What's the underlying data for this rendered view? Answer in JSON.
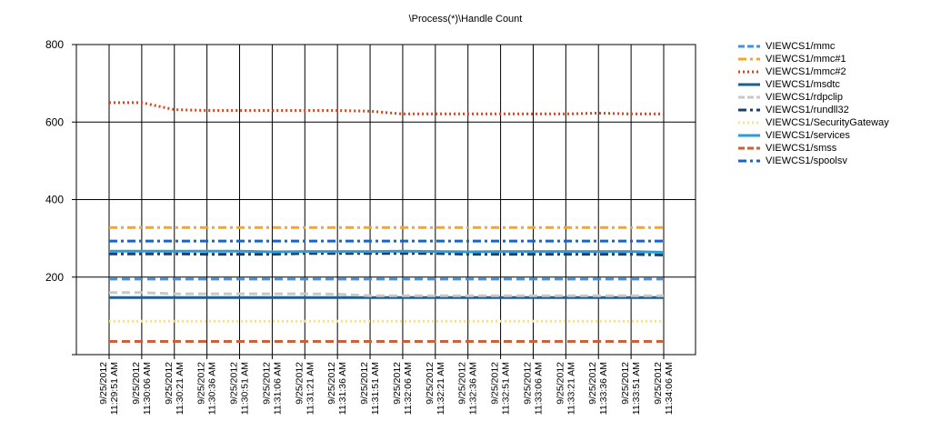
{
  "chart_data": {
    "type": "line",
    "title": "\\Process(*)\\Handle Count",
    "xlabel": "",
    "ylabel": "",
    "ylim": [
      0,
      800
    ],
    "yticks": [
      200,
      400,
      600,
      800
    ],
    "grid": true,
    "legend_position": "right",
    "x": [
      "9/25/2012 11:29:51 AM",
      "9/25/2012 11:30:06 AM",
      "9/25/2012 11:30:21 AM",
      "9/25/2012 11:30:36 AM",
      "9/25/2012 11:30:51 AM",
      "9/25/2012 11:31:06 AM",
      "9/25/2012 11:31:21 AM",
      "9/25/2012 11:31:36 AM",
      "9/25/2012 11:31:51 AM",
      "9/25/2012 11:32:06 AM",
      "9/25/2012 11:32:21 AM",
      "9/25/2012 11:32:36 AM",
      "9/25/2012 11:32:51 AM",
      "9/25/2012 11:33:06 AM",
      "9/25/2012 11:33:21 AM",
      "9/25/2012 11:33:36 AM",
      "9/25/2012 11:33:51 AM",
      "9/25/2012 11:34:06 AM"
    ],
    "series": [
      {
        "name": "VIEWCS1/mmc",
        "color": "#4a90d9",
        "dash": "dashed",
        "values": [
          195,
          195,
          195,
          195,
          195,
          195,
          195,
          195,
          195,
          195,
          195,
          195,
          195,
          195,
          195,
          195,
          195,
          195
        ]
      },
      {
        "name": "VIEWCS1/mmc#1",
        "color": "#f5a623",
        "dash": "dashdot",
        "values": [
          328,
          328,
          328,
          328,
          328,
          328,
          328,
          328,
          328,
          328,
          328,
          328,
          328,
          328,
          328,
          328,
          328,
          328
        ]
      },
      {
        "name": "VIEWCS1/mmc#2",
        "color": "#d9441e",
        "dash": "dotted",
        "values": [
          650,
          650,
          632,
          630,
          630,
          630,
          630,
          630,
          628,
          621,
          621,
          621,
          621,
          621,
          621,
          623,
          621,
          621
        ]
      },
      {
        "name": "VIEWCS1/msdtc",
        "color": "#1f5f8b",
        "dash": "solid",
        "values": [
          147,
          147,
          147,
          147,
          147,
          147,
          147,
          147,
          147,
          147,
          147,
          147,
          147,
          147,
          147,
          147,
          147,
          147
        ]
      },
      {
        "name": "VIEWCS1/rdpclip",
        "color": "#c8c8c8",
        "dash": "dashed",
        "values": [
          160,
          160,
          157,
          157,
          157,
          157,
          157,
          156,
          152,
          152,
          152,
          152,
          152,
          152,
          152,
          152,
          152,
          152
        ]
      },
      {
        "name": "VIEWCS1/rundll32",
        "color": "#1c3f6e",
        "dash": "dashdot",
        "values": [
          260,
          260,
          260,
          259,
          259,
          259,
          261,
          261,
          261,
          261,
          261,
          259,
          259,
          259,
          259,
          259,
          259,
          257
        ]
      },
      {
        "name": "VIEWCS1/SecurityGateway",
        "color": "#f9e08a",
        "dash": "dotted",
        "values": [
          86,
          86,
          86,
          86,
          86,
          86,
          86,
          86,
          86,
          86,
          86,
          86,
          86,
          86,
          86,
          86,
          86,
          86
        ]
      },
      {
        "name": "VIEWCS1/services",
        "color": "#2a9fd6",
        "dash": "solid",
        "values": [
          267,
          267,
          267,
          267,
          267,
          265,
          266,
          266,
          266,
          267,
          266,
          265,
          266,
          266,
          266,
          266,
          266,
          264
        ]
      },
      {
        "name": "VIEWCS1/smss",
        "color": "#c8623c",
        "dash": "dashed",
        "values": [
          34,
          34,
          34,
          34,
          34,
          34,
          34,
          34,
          34,
          34,
          34,
          34,
          34,
          34,
          34,
          34,
          34,
          34
        ]
      },
      {
        "name": "VIEWCS1/spoolsv",
        "color": "#1b64c4",
        "dash": "dashdot",
        "values": [
          293,
          293,
          293,
          293,
          293,
          293,
          293,
          293,
          293,
          293,
          293,
          293,
          293,
          293,
          293,
          293,
          293,
          293
        ]
      }
    ]
  }
}
